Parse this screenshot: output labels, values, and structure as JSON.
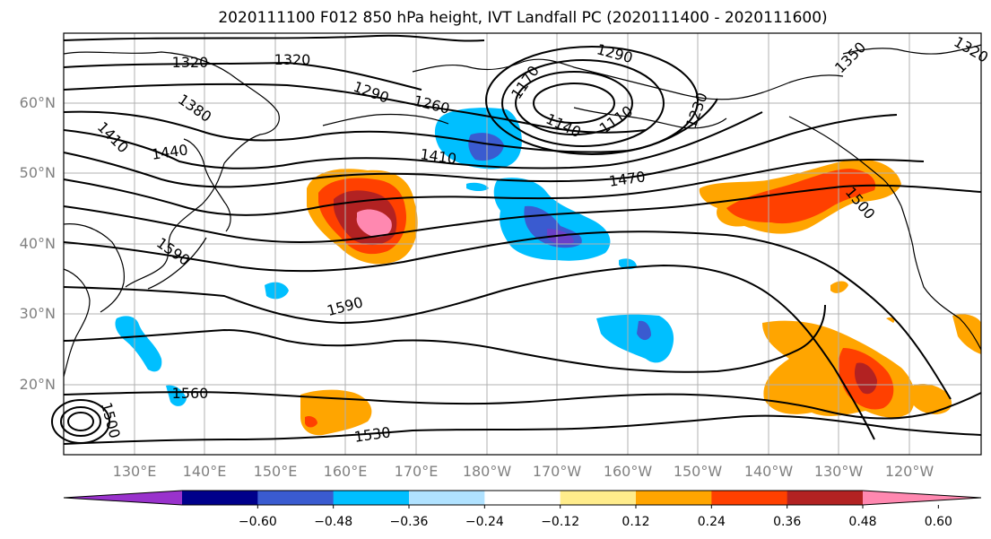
{
  "title": "2020111100 F012 850 hPa height, IVT Landfall PC (2020111400 - 2020111600)",
  "map": {
    "lat_labels": [
      "60°N",
      "50°N",
      "40°N",
      "30°N",
      "20°N"
    ],
    "lon_labels": [
      "130°E",
      "140°E",
      "150°E",
      "160°E",
      "170°E",
      "180°W",
      "170°W",
      "160°W",
      "150°W",
      "140°W",
      "130°W",
      "120°W"
    ],
    "contour_labels": [
      "1320",
      "1320",
      "1290",
      "1260",
      "1290",
      "1170",
      "1140",
      "1110",
      "1230",
      "1350",
      "1320",
      "1380",
      "1410",
      "1440",
      "1410",
      "1470",
      "1500",
      "1590",
      "1590",
      "1560",
      "1530",
      "1500"
    ]
  },
  "colorbar": {
    "colors": [
      "#9932cc",
      "#00008b",
      "#3a5bd0",
      "#00bfff",
      "#b0e2ff",
      "#ffffff",
      "#ffec8b",
      "#ffa500",
      "#ff4000",
      "#b22222",
      "#ff88b0"
    ],
    "tick_labels": [
      "−0.60",
      "−0.48",
      "−0.36",
      "−0.24",
      "−0.12",
      "0.12",
      "0.24",
      "0.36",
      "0.48",
      "0.60"
    ]
  }
}
